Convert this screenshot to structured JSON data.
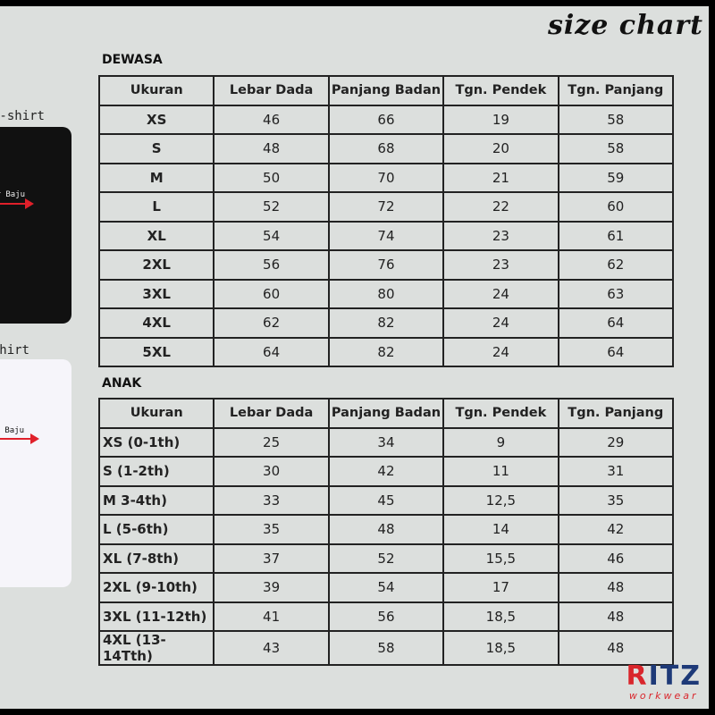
{
  "title": "size chart",
  "shirt_labels": {
    "tshirt": "T-shirt",
    "polo": "Polo Shirt",
    "arrow": "Lebar Baju"
  },
  "adult": {
    "heading": "DEWASA",
    "columns": [
      "Ukuran",
      "Lebar Dada",
      "Panjang Badan",
      "Tgn. Pendek",
      "Tgn. Panjang"
    ],
    "rows": [
      [
        "XS",
        "46",
        "66",
        "19",
        "58"
      ],
      [
        "S",
        "48",
        "68",
        "20",
        "58"
      ],
      [
        "M",
        "50",
        "70",
        "21",
        "59"
      ],
      [
        "L",
        "52",
        "72",
        "22",
        "60"
      ],
      [
        "XL",
        "54",
        "74",
        "23",
        "61"
      ],
      [
        "2XL",
        "56",
        "76",
        "23",
        "62"
      ],
      [
        "3XL",
        "60",
        "80",
        "24",
        "63"
      ],
      [
        "4XL",
        "62",
        "82",
        "24",
        "64"
      ],
      [
        "5XL",
        "64",
        "82",
        "24",
        "64"
      ]
    ]
  },
  "kids": {
    "heading": "ANAK",
    "columns": [
      "Ukuran",
      "Lebar Dada",
      "Panjang Badan",
      "Tgn. Pendek",
      "Tgn. Panjang"
    ],
    "rows": [
      [
        "XS (0-1th)",
        "25",
        "34",
        "9",
        "29"
      ],
      [
        "S (1-2th)",
        "30",
        "42",
        "11",
        "31"
      ],
      [
        "M 3-4th)",
        "33",
        "45",
        "12,5",
        "35"
      ],
      [
        "L (5-6th)",
        "35",
        "48",
        "14",
        "42"
      ],
      [
        "XL (7-8th)",
        "37",
        "52",
        "15,5",
        "46"
      ],
      [
        "2XL (9-10th)",
        "39",
        "54",
        "17",
        "48"
      ],
      [
        "3XL (11-12th)",
        "41",
        "56",
        "18,5",
        "48"
      ],
      [
        "4XL (13-14Tth)",
        "43",
        "58",
        "18,5",
        "48"
      ]
    ]
  },
  "logo": {
    "brand": "RITZ",
    "tagline": "workwear"
  },
  "colors": {
    "background": "#dcdfdd",
    "accent_red": "#d9262c",
    "brand_blue": "#1e3a78"
  }
}
